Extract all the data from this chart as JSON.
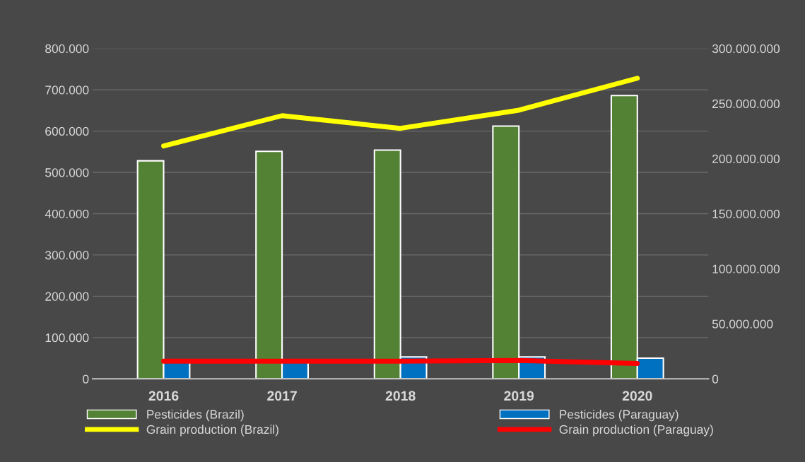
{
  "chart_data": {
    "type": "bar",
    "categories": [
      "2016",
      "2017",
      "2018",
      "2019",
      "2020"
    ],
    "series": [
      {
        "name": "Pesticides (Brazil)",
        "color": "#548235",
        "values": [
          528000,
          551000,
          554000,
          612000,
          686000
        ]
      },
      {
        "name": "Pesticides (Paraguay)",
        "color": "#0070c0",
        "values": [
          42000,
          42000,
          53000,
          53000,
          50000
        ]
      },
      {
        "name": "Grain production (Brazil)",
        "type": "line",
        "axis": "y2",
        "color": "#ffff00",
        "values": [
          211500000,
          239000000,
          227500000,
          244000000,
          273000000
        ]
      },
      {
        "name": "Grain production (Paraguay)",
        "type": "line",
        "axis": "y2",
        "color": "#ff0000",
        "values": [
          16000000,
          16000000,
          16000000,
          16700000,
          14000000
        ]
      }
    ],
    "ylim": [
      0,
      800000
    ],
    "yticks": [
      {
        "value": 0,
        "label": "0"
      },
      {
        "value": 100000,
        "label": "100.000"
      },
      {
        "value": 200000,
        "label": "200.000"
      },
      {
        "value": 300000,
        "label": "300.000"
      },
      {
        "value": 400000,
        "label": "400.000"
      },
      {
        "value": 500000,
        "label": "500.000"
      },
      {
        "value": 600000,
        "label": "600.000"
      },
      {
        "value": 700000,
        "label": "700.000"
      },
      {
        "value": 800000,
        "label": "800.000"
      }
    ],
    "y2lim": [
      0,
      300000000
    ],
    "y2ticks": [
      {
        "value": 0,
        "label": "0"
      },
      {
        "value": 50000000,
        "label": "50.000.000"
      },
      {
        "value": 100000000,
        "label": "100.000.000"
      },
      {
        "value": 150000000,
        "label": "150.000.000"
      },
      {
        "value": 200000000,
        "label": "200.000.000"
      },
      {
        "value": 250000000,
        "label": "250.000.000"
      },
      {
        "value": 300000000,
        "label": "300.000.000"
      }
    ],
    "grid": "y",
    "legend": "bottom"
  }
}
